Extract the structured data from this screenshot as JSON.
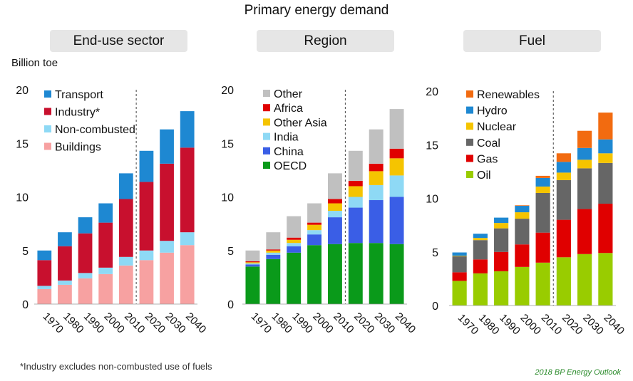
{
  "title": "Primary energy demand",
  "unit_label": "Billion toe",
  "footnote": "*Industry excludes non-combusted use of fuels",
  "source": "2018 BP Energy Outlook",
  "chart_data": [
    {
      "type": "bar",
      "stacked": true,
      "title": "End-use sector",
      "ylabel": "Billion toe",
      "ylim": [
        0,
        20
      ],
      "yticks": [
        0,
        5,
        10,
        15,
        20
      ],
      "categories": [
        "1970",
        "1980",
        "1990",
        "2000",
        "2010",
        "2020",
        "2030",
        "2040"
      ],
      "projection_divider_after": "2010",
      "series": [
        {
          "name": "Buildings",
          "color": "#f7a1a1",
          "values": [
            1.4,
            1.8,
            2.4,
            2.8,
            3.6,
            4.1,
            4.8,
            5.5
          ]
        },
        {
          "name": "Non-combusted",
          "color": "#8ed9f5",
          "values": [
            0.3,
            0.4,
            0.5,
            0.6,
            0.8,
            0.9,
            1.1,
            1.2
          ]
        },
        {
          "name": "Industry*",
          "color": "#c8102e",
          "values": [
            2.4,
            3.2,
            3.7,
            4.2,
            5.4,
            6.4,
            7.2,
            7.9
          ]
        },
        {
          "name": "Transport",
          "color": "#1e88d2",
          "values": [
            0.9,
            1.3,
            1.5,
            1.8,
            2.4,
            2.9,
            3.2,
            3.4
          ]
        }
      ],
      "legend_order": [
        "Transport",
        "Industry*",
        "Non-combusted",
        "Buildings"
      ]
    },
    {
      "type": "bar",
      "stacked": true,
      "title": "Region",
      "ylim": [
        0,
        20
      ],
      "yticks": [
        0,
        5,
        10,
        15,
        20
      ],
      "categories": [
        "1970",
        "1980",
        "1990",
        "2000",
        "2010",
        "2020",
        "2030",
        "2040"
      ],
      "projection_divider_after": "2010",
      "series": [
        {
          "name": "OECD",
          "color": "#0a9a1a",
          "values": [
            3.5,
            4.2,
            4.8,
            5.5,
            5.6,
            5.7,
            5.7,
            5.6
          ]
        },
        {
          "name": "China",
          "color": "#3a5ee6",
          "values": [
            0.2,
            0.4,
            0.6,
            1.0,
            2.5,
            3.3,
            4.0,
            4.4
          ]
        },
        {
          "name": "India",
          "color": "#8ed9f5",
          "values": [
            0.1,
            0.2,
            0.3,
            0.4,
            0.6,
            1.0,
            1.4,
            2.0
          ]
        },
        {
          "name": "Other Asia",
          "color": "#f5c400",
          "values": [
            0.1,
            0.2,
            0.3,
            0.5,
            0.7,
            1.0,
            1.3,
            1.6
          ]
        },
        {
          "name": "Africa",
          "color": "#e00000",
          "values": [
            0.1,
            0.1,
            0.2,
            0.2,
            0.4,
            0.5,
            0.7,
            0.9
          ]
        },
        {
          "name": "Other",
          "color": "#c0c0c0",
          "values": [
            1.0,
            1.6,
            2.0,
            1.8,
            2.4,
            2.8,
            3.2,
            3.7
          ]
        }
      ],
      "legend_order": [
        "Other",
        "Africa",
        "Other Asia",
        "India",
        "China",
        "OECD"
      ]
    },
    {
      "type": "bar",
      "stacked": true,
      "title": "Fuel",
      "ylim": [
        0,
        20
      ],
      "yticks": [
        0,
        5,
        10,
        15,
        20
      ],
      "categories": [
        "1970",
        "1980",
        "1990",
        "2000",
        "2010",
        "2020",
        "2030",
        "2040"
      ],
      "projection_divider_after": "2010",
      "series": [
        {
          "name": "Oil",
          "color": "#99cc00",
          "values": [
            2.3,
            3.0,
            3.2,
            3.6,
            4.0,
            4.5,
            4.8,
            4.9
          ]
        },
        {
          "name": "Gas",
          "color": "#e00000",
          "values": [
            0.8,
            1.3,
            1.8,
            2.1,
            2.8,
            3.5,
            4.2,
            4.6
          ]
        },
        {
          "name": "Coal",
          "color": "#666666",
          "values": [
            1.5,
            1.8,
            2.2,
            2.4,
            3.7,
            3.7,
            3.8,
            3.8
          ]
        },
        {
          "name": "Nuclear",
          "color": "#f5c400",
          "values": [
            0.05,
            0.2,
            0.5,
            0.6,
            0.6,
            0.7,
            0.8,
            0.9
          ]
        },
        {
          "name": "Hydro",
          "color": "#1e88d2",
          "values": [
            0.3,
            0.4,
            0.5,
            0.6,
            0.8,
            1.0,
            1.1,
            1.3
          ]
        },
        {
          "name": "Renewables",
          "color": "#f26b10",
          "values": [
            0.0,
            0.0,
            0.0,
            0.05,
            0.2,
            0.8,
            1.6,
            2.5
          ]
        }
      ],
      "legend_order": [
        "Renewables",
        "Hydro",
        "Nuclear",
        "Coal",
        "Gas",
        "Oil"
      ]
    }
  ]
}
